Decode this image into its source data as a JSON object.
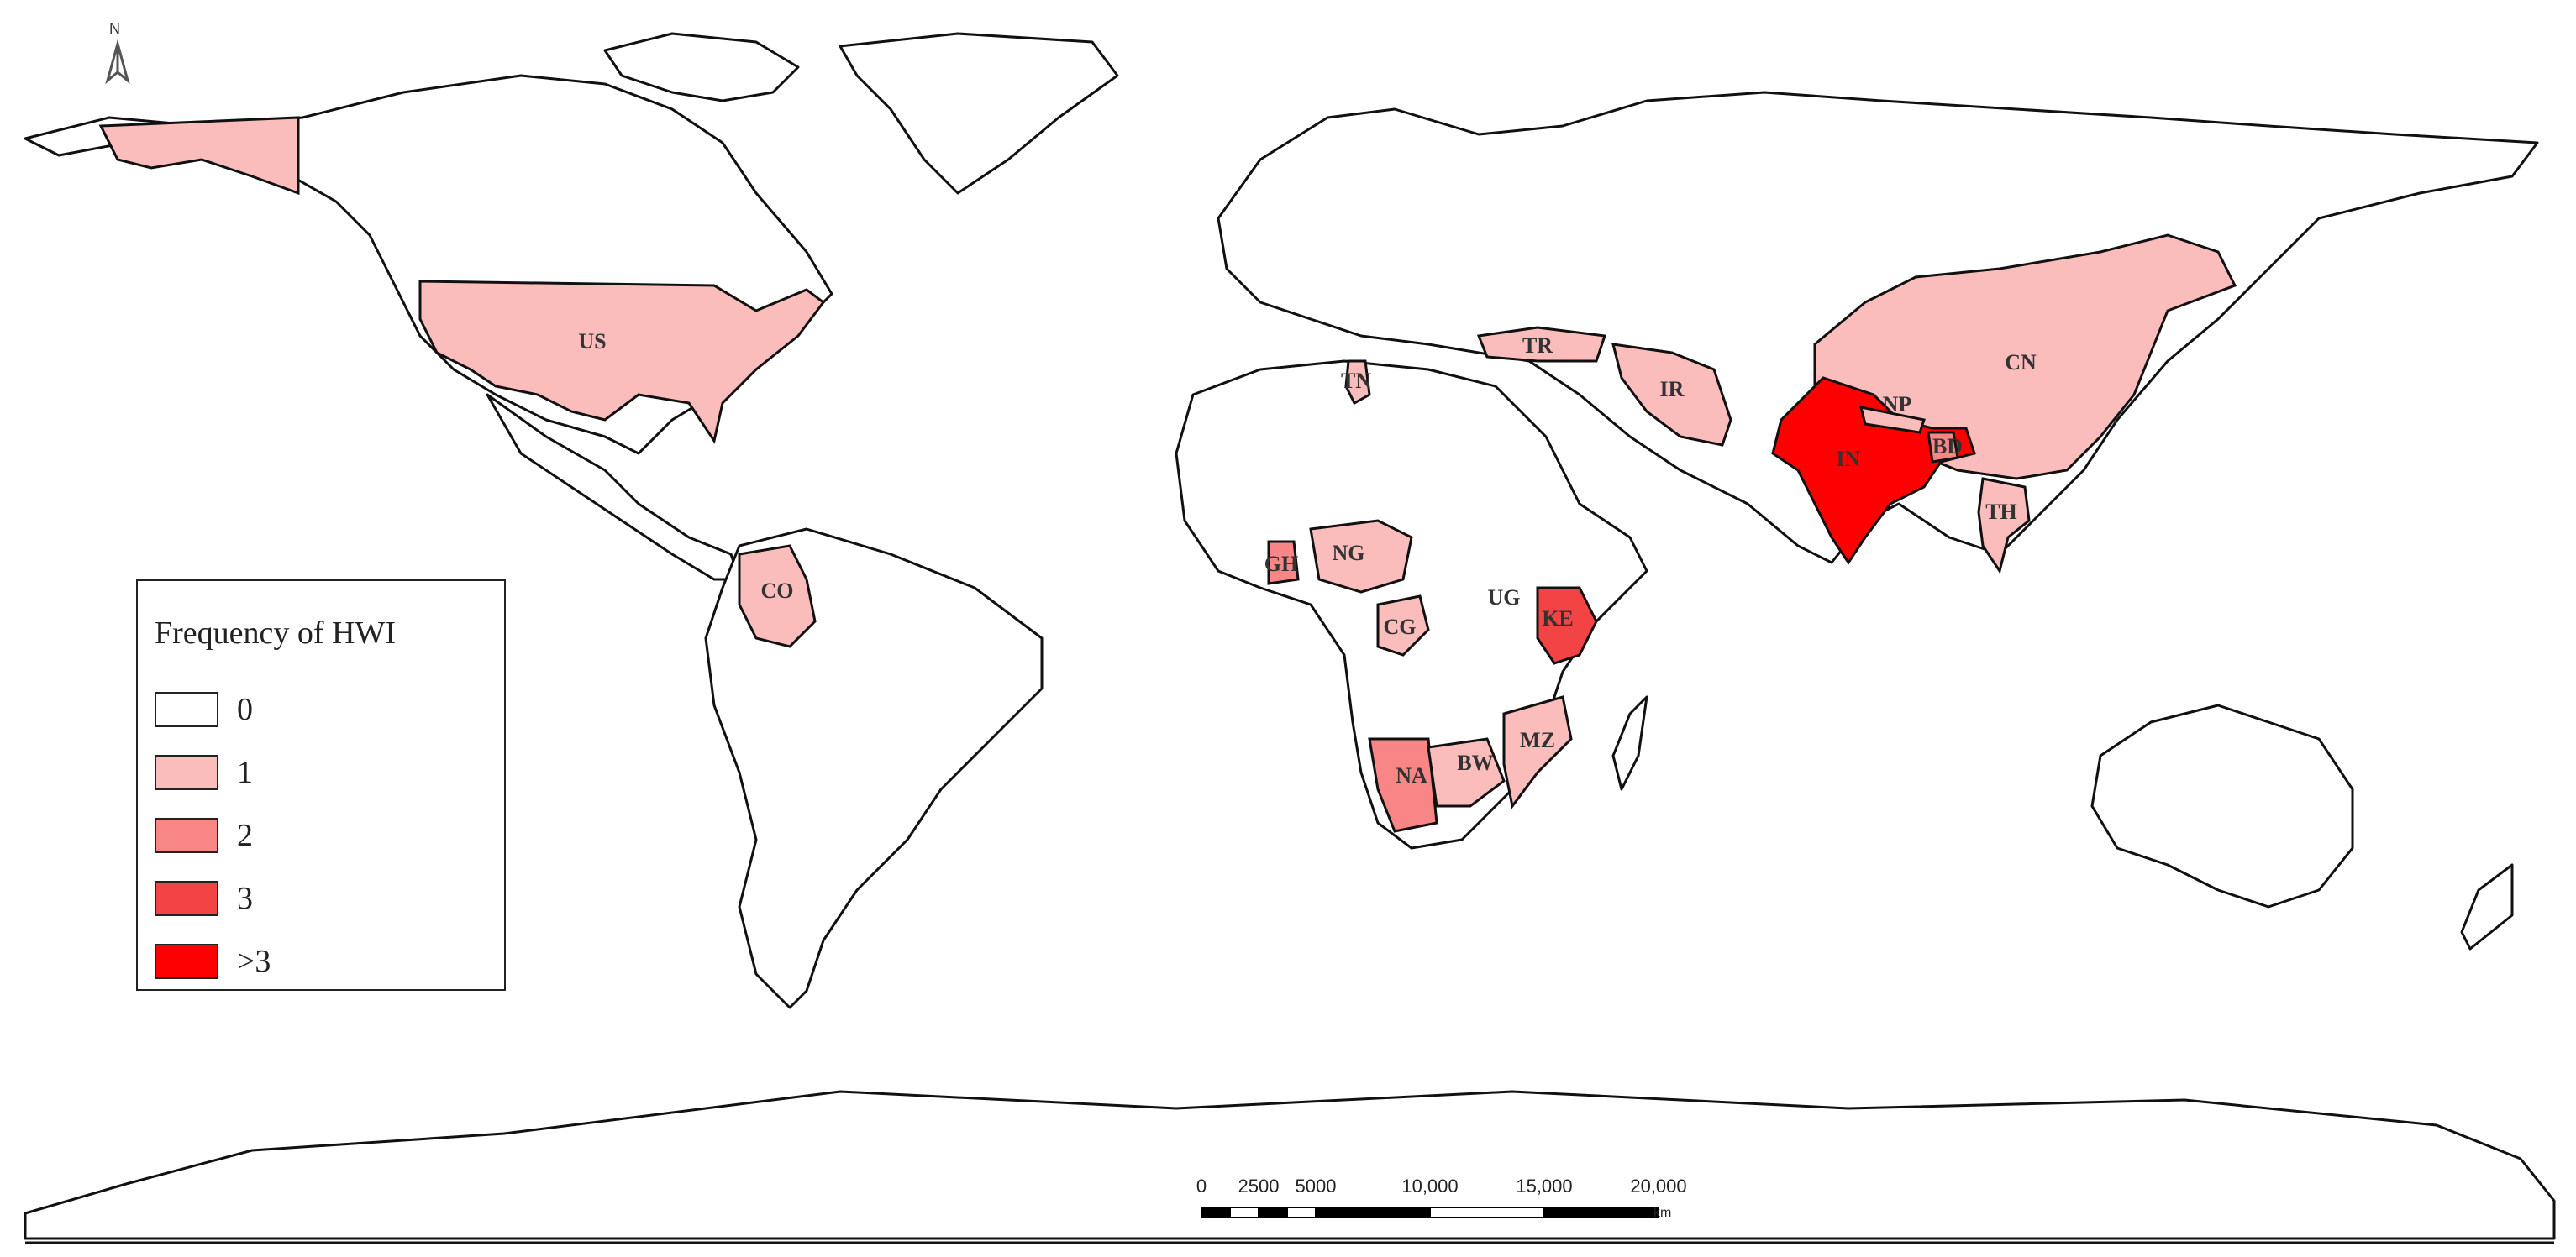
{
  "legend": {
    "title": "Frequency of HWI",
    "items": [
      {
        "label": "0",
        "color": "#ffffff"
      },
      {
        "label": "1",
        "color": "#fbbcbc"
      },
      {
        "label": "2",
        "color": "#f88686"
      },
      {
        "label": "3",
        "color": "#f24444"
      },
      {
        "label": ">3",
        "color": "#ff0000"
      }
    ]
  },
  "north_arrow": {
    "label": "N"
  },
  "scale_bar": {
    "ticks": [
      "0",
      "2500",
      "5000",
      "10,000",
      "15,000",
      "20,000"
    ],
    "unit": "km"
  },
  "countries": [
    {
      "code": "US",
      "frequency": "1"
    },
    {
      "code": "CO",
      "frequency": "1"
    },
    {
      "code": "TN",
      "frequency": "1"
    },
    {
      "code": "GH",
      "frequency": "2"
    },
    {
      "code": "NG",
      "frequency": "1"
    },
    {
      "code": "CG",
      "frequency": "1"
    },
    {
      "code": "UG",
      "frequency": "0"
    },
    {
      "code": "KE",
      "frequency": "3"
    },
    {
      "code": "NA",
      "frequency": "2"
    },
    {
      "code": "BW",
      "frequency": "1"
    },
    {
      "code": "MZ",
      "frequency": "1"
    },
    {
      "code": "TR",
      "frequency": "1"
    },
    {
      "code": "IR",
      "frequency": "1"
    },
    {
      "code": "IN",
      "frequency": ">3"
    },
    {
      "code": "NP",
      "frequency": "1"
    },
    {
      "code": "BD",
      "frequency": "2"
    },
    {
      "code": "TH",
      "frequency": "1"
    },
    {
      "code": "CN",
      "frequency": "1"
    }
  ]
}
